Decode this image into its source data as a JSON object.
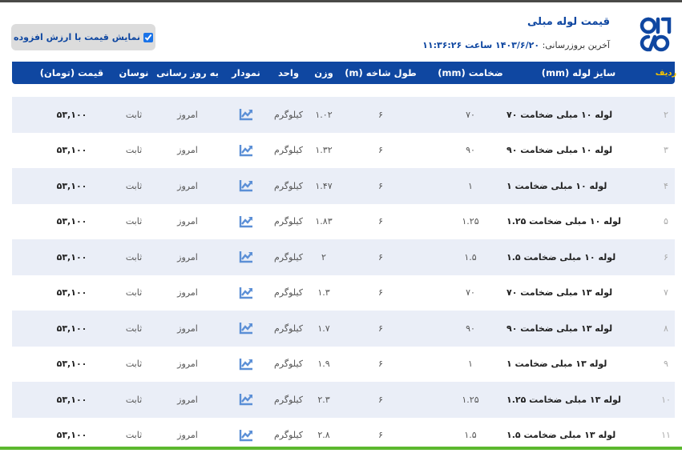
{
  "header": {
    "title": "قیمت لوله مبلی",
    "updated_label": "آخرین بروزرسانی:",
    "updated_value": "۱۴۰۳/۶/۲۰ ساعت ۱۱:۳۶:۲۶"
  },
  "vat_toggle": {
    "label": "نمایش قیمت با ارزش افزوده",
    "checked": true
  },
  "colors": {
    "brand": "#0f47a1",
    "row_shade": "#eaeef7",
    "chart_icon": "#5b8fd6"
  },
  "columns": {
    "index": "ردیف",
    "size": "سایز لوله (mm)",
    "thickness": "ضخامت (mm)",
    "length": "طول شاخه (m)",
    "weight": "وزن",
    "unit": "واحد",
    "chart": "نمودار",
    "updated": "به روز رسانی",
    "fluctuation": "نوسان",
    "price": "قیمت (تومان)"
  },
  "rows": [
    {
      "index": "۲",
      "name": "لوله ۱۰ مبلی ضخامت ۷۰",
      "thickness": "۷۰",
      "length": "۶",
      "weight": "۱.۰۲",
      "unit": "کیلوگرم",
      "updated": "امروز",
      "fluctuation": "ثابت",
      "price": "۵۳,۱۰۰"
    },
    {
      "index": "۳",
      "name": "لوله ۱۰ مبلی ضخامت ۹۰",
      "thickness": "۹۰",
      "length": "۶",
      "weight": "۱.۳۲",
      "unit": "کیلوگرم",
      "updated": "امروز",
      "fluctuation": "ثابت",
      "price": "۵۳,۱۰۰"
    },
    {
      "index": "۴",
      "name": "لوله ۱۰ مبلی ضخامت ۱",
      "thickness": "۱",
      "length": "۶",
      "weight": "۱.۴۷",
      "unit": "کیلوگرم",
      "updated": "امروز",
      "fluctuation": "ثابت",
      "price": "۵۳,۱۰۰"
    },
    {
      "index": "۵",
      "name": "لوله ۱۰ مبلی ضخامت ۱.۲۵",
      "thickness": "۱.۲۵",
      "length": "۶",
      "weight": "۱.۸۳",
      "unit": "کیلوگرم",
      "updated": "امروز",
      "fluctuation": "ثابت",
      "price": "۵۳,۱۰۰"
    },
    {
      "index": "۶",
      "name": "لوله ۱۰ مبلی ضخامت ۱.۵",
      "thickness": "۱.۵",
      "length": "۶",
      "weight": "۲",
      "unit": "کیلوگرم",
      "updated": "امروز",
      "fluctuation": "ثابت",
      "price": "۵۳,۱۰۰"
    },
    {
      "index": "۷",
      "name": "لوله ۱۳ مبلی ضخامت ۷۰",
      "thickness": "۷۰",
      "length": "۶",
      "weight": "۱.۳",
      "unit": "کیلوگرم",
      "updated": "امروز",
      "fluctuation": "ثابت",
      "price": "۵۳,۱۰۰"
    },
    {
      "index": "۸",
      "name": "لوله ۱۳ مبلی ضخامت ۹۰",
      "thickness": "۹۰",
      "length": "۶",
      "weight": "۱.۷",
      "unit": "کیلوگرم",
      "updated": "امروز",
      "fluctuation": "ثابت",
      "price": "۵۳,۱۰۰"
    },
    {
      "index": "۹",
      "name": "لوله ۱۳ مبلی ضخامت ۱",
      "thickness": "۱",
      "length": "۶",
      "weight": "۱.۹",
      "unit": "کیلوگرم",
      "updated": "امروز",
      "fluctuation": "ثابت",
      "price": "۵۳,۱۰۰"
    },
    {
      "index": "۱۰",
      "name": "لوله ۱۳ مبلی ضخامت ۱.۲۵",
      "thickness": "۱.۲۵",
      "length": "۶",
      "weight": "۲.۳",
      "unit": "کیلوگرم",
      "updated": "امروز",
      "fluctuation": "ثابت",
      "price": "۵۳,۱۰۰"
    },
    {
      "index": "۱۱",
      "name": "لوله ۱۳ مبلی ضخامت ۱.۵",
      "thickness": "۱.۵",
      "length": "۶",
      "weight": "۲.۸",
      "unit": "کیلوگرم",
      "updated": "امروز",
      "fluctuation": "ثابت",
      "price": "۵۳,۱۰۰"
    }
  ]
}
